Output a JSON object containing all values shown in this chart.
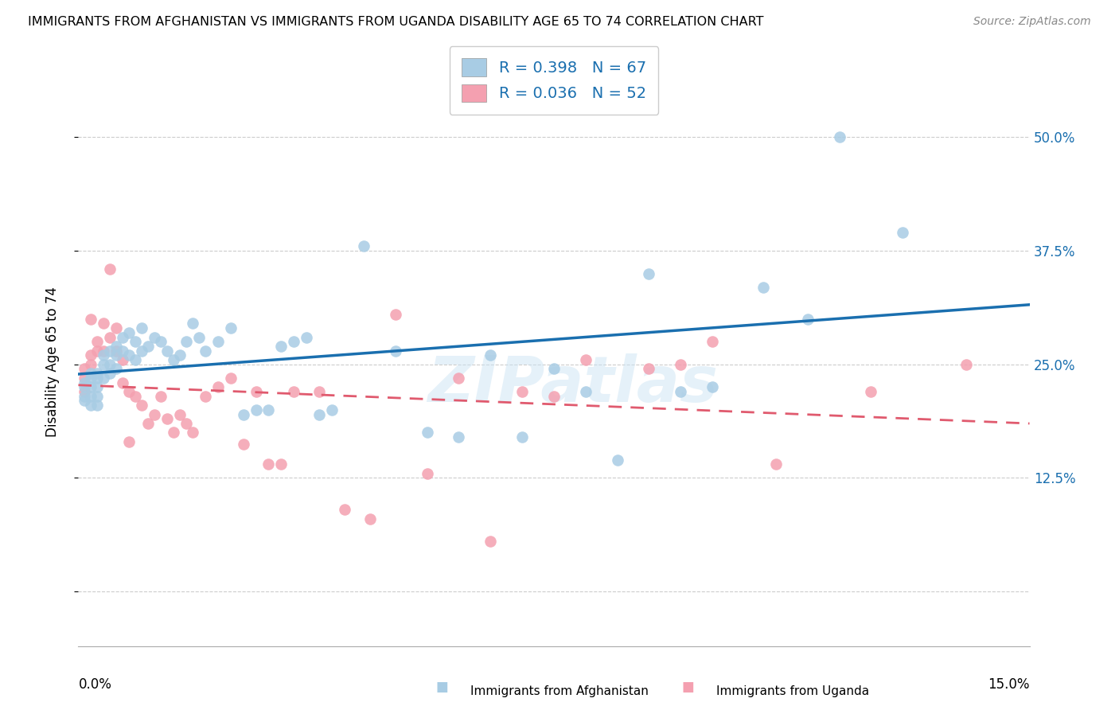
{
  "title": "IMMIGRANTS FROM AFGHANISTAN VS IMMIGRANTS FROM UGANDA DISABILITY AGE 65 TO 74 CORRELATION CHART",
  "source": "Source: ZipAtlas.com",
  "ylabel": "Disability Age 65 to 74",
  "ytick_values": [
    0.0,
    0.125,
    0.25,
    0.375,
    0.5
  ],
  "ytick_labels": [
    "",
    "12.5%",
    "25.0%",
    "37.5%",
    "50.0%"
  ],
  "xlim": [
    0.0,
    0.15
  ],
  "ylim": [
    -0.06,
    0.565
  ],
  "legend_label1": "Immigrants from Afghanistan",
  "legend_label2": "Immigrants from Uganda",
  "R1": "0.398",
  "N1": "67",
  "R2": "0.036",
  "N2": "52",
  "color_afghanistan": "#a8cce4",
  "color_uganda": "#f4a0b0",
  "color_line_afghanistan": "#1a6faf",
  "color_line_uganda": "#e05a6e",
  "watermark": "ZIPatlas",
  "af_x": [
    0.001,
    0.001,
    0.001,
    0.001,
    0.002,
    0.002,
    0.002,
    0.002,
    0.002,
    0.003,
    0.003,
    0.003,
    0.003,
    0.003,
    0.004,
    0.004,
    0.004,
    0.005,
    0.005,
    0.005,
    0.006,
    0.006,
    0.006,
    0.007,
    0.007,
    0.008,
    0.008,
    0.009,
    0.009,
    0.01,
    0.01,
    0.011,
    0.012,
    0.013,
    0.014,
    0.015,
    0.016,
    0.017,
    0.018,
    0.019,
    0.02,
    0.022,
    0.024,
    0.026,
    0.028,
    0.03,
    0.032,
    0.034,
    0.036,
    0.038,
    0.04,
    0.045,
    0.05,
    0.055,
    0.06,
    0.065,
    0.07,
    0.075,
    0.08,
    0.085,
    0.09,
    0.095,
    0.1,
    0.108,
    0.115,
    0.12,
    0.13
  ],
  "af_y": [
    0.23,
    0.225,
    0.215,
    0.21,
    0.24,
    0.235,
    0.225,
    0.215,
    0.205,
    0.24,
    0.235,
    0.225,
    0.215,
    0.205,
    0.26,
    0.25,
    0.235,
    0.265,
    0.25,
    0.24,
    0.27,
    0.26,
    0.245,
    0.28,
    0.265,
    0.285,
    0.26,
    0.275,
    0.255,
    0.29,
    0.265,
    0.27,
    0.28,
    0.275,
    0.265,
    0.255,
    0.26,
    0.275,
    0.295,
    0.28,
    0.265,
    0.275,
    0.29,
    0.195,
    0.2,
    0.2,
    0.27,
    0.275,
    0.28,
    0.195,
    0.2,
    0.38,
    0.265,
    0.175,
    0.17,
    0.26,
    0.17,
    0.245,
    0.22,
    0.145,
    0.35,
    0.22,
    0.225,
    0.335,
    0.3,
    0.5,
    0.395
  ],
  "ug_x": [
    0.001,
    0.001,
    0.001,
    0.002,
    0.002,
    0.002,
    0.003,
    0.003,
    0.004,
    0.004,
    0.005,
    0.005,
    0.006,
    0.006,
    0.007,
    0.007,
    0.008,
    0.008,
    0.009,
    0.01,
    0.011,
    0.012,
    0.013,
    0.014,
    0.015,
    0.016,
    0.017,
    0.018,
    0.02,
    0.022,
    0.024,
    0.026,
    0.028,
    0.03,
    0.032,
    0.034,
    0.038,
    0.042,
    0.046,
    0.05,
    0.055,
    0.06,
    0.065,
    0.07,
    0.075,
    0.08,
    0.09,
    0.095,
    0.1,
    0.11,
    0.125,
    0.14
  ],
  "ug_y": [
    0.245,
    0.235,
    0.22,
    0.26,
    0.25,
    0.3,
    0.275,
    0.265,
    0.295,
    0.265,
    0.355,
    0.28,
    0.29,
    0.265,
    0.255,
    0.23,
    0.165,
    0.22,
    0.215,
    0.205,
    0.185,
    0.195,
    0.215,
    0.19,
    0.175,
    0.195,
    0.185,
    0.175,
    0.215,
    0.225,
    0.235,
    0.162,
    0.22,
    0.14,
    0.14,
    0.22,
    0.22,
    0.09,
    0.08,
    0.305,
    0.13,
    0.235,
    0.055,
    0.22,
    0.215,
    0.255,
    0.245,
    0.25,
    0.275,
    0.14,
    0.22,
    0.25
  ]
}
